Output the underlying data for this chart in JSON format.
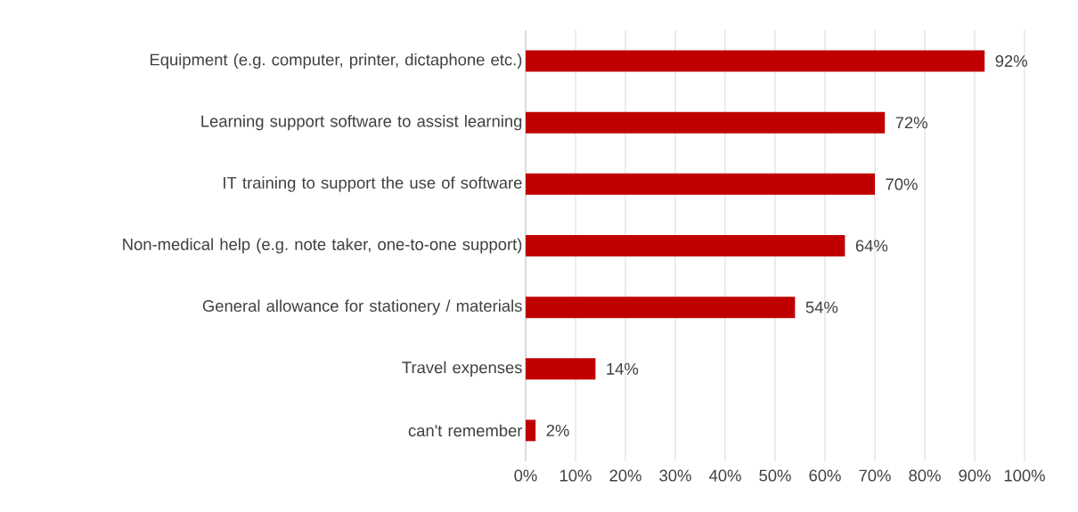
{
  "chart_data": {
    "type": "bar",
    "orientation": "horizontal",
    "categories": [
      "Equipment (e.g. computer, printer, dictaphone etc.)",
      "Learning support software to assist learning",
      "IT training to support the use of software",
      "Non-medical help (e.g. note taker, one-to-one support)",
      "General allowance for stationery / materials",
      "Travel expenses",
      "can't remember"
    ],
    "values": [
      92,
      72,
      70,
      64,
      54,
      14,
      2
    ],
    "value_labels": [
      "92%",
      "72%",
      "70%",
      "64%",
      "54%",
      "14%",
      "2%"
    ],
    "color": "#c00000",
    "xlim": [
      0,
      100
    ],
    "xticks": [
      {
        "value": 0,
        "label": "0%"
      },
      {
        "value": 10,
        "label": "10%"
      },
      {
        "value": 20,
        "label": "20%"
      },
      {
        "value": 30,
        "label": "30%"
      },
      {
        "value": 40,
        "label": "40%"
      },
      {
        "value": 50,
        "label": "50%"
      },
      {
        "value": 60,
        "label": "60%"
      },
      {
        "value": 70,
        "label": "70%"
      },
      {
        "value": 80,
        "label": "80%"
      },
      {
        "value": 90,
        "label": "90%"
      },
      {
        "value": 100,
        "label": "100%"
      }
    ],
    "grid": "x"
  }
}
